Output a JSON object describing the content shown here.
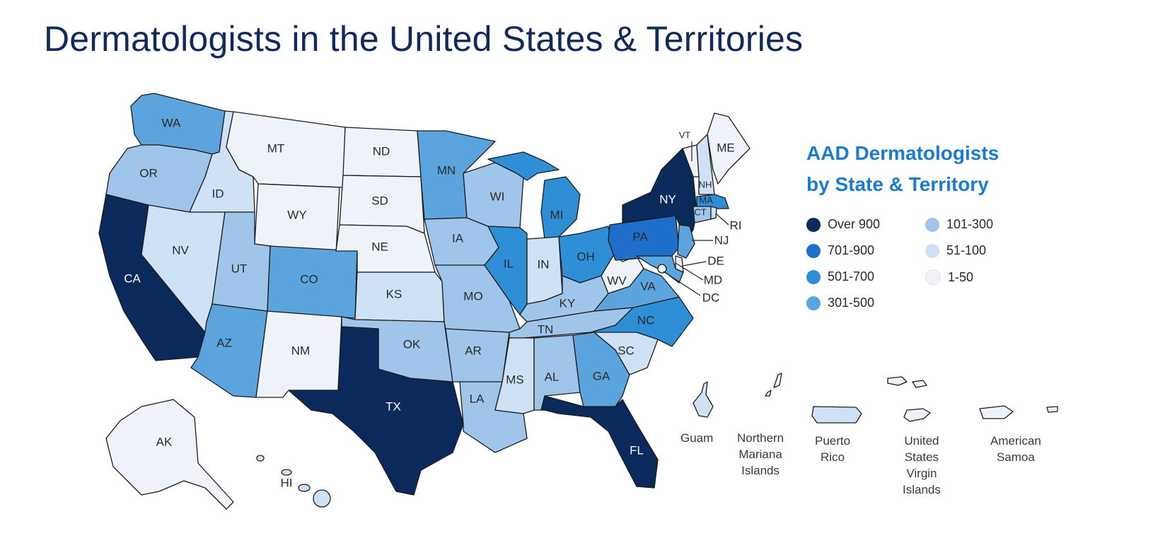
{
  "title": "Dermatologists in the United States & Territories",
  "legend": {
    "title_line1": "AAD Dermatologists",
    "title_line2": "by State & Territory",
    "items": [
      {
        "label": "Over 900",
        "color": "#0a2a5c"
      },
      {
        "label": "701-900",
        "color": "#1e6fcc"
      },
      {
        "label": "501-700",
        "color": "#2e8fd6"
      },
      {
        "label": "301-500",
        "color": "#5ca4de"
      },
      {
        "label": "101-300",
        "color": "#9fc6ea"
      },
      {
        "label": "51-100",
        "color": "#cfe1f5"
      },
      {
        "label": "1-50",
        "color": "#eef3f9"
      }
    ]
  },
  "states": {
    "WA": "WA",
    "OR": "OR",
    "CA": "CA",
    "ID": "ID",
    "NV": "NV",
    "MT": "MT",
    "WY": "WY",
    "UT": "UT",
    "AZ": "AZ",
    "CO": "CO",
    "NM": "NM",
    "ND": "ND",
    "SD": "SD",
    "NE": "NE",
    "KS": "KS",
    "OK": "OK",
    "TX": "TX",
    "MN": "MN",
    "IA": "IA",
    "MO": "MO",
    "AR": "AR",
    "LA": "LA",
    "WI": "WI",
    "IL": "IL",
    "MI": "MI",
    "IN": "IN",
    "OH": "OH",
    "KY": "KY",
    "TN": "TN",
    "MS": "MS",
    "AL": "AL",
    "GA": "GA",
    "FL": "FL",
    "SC": "SC",
    "NC": "NC",
    "VA": "VA",
    "WV": "WV",
    "PA": "PA",
    "NY": "NY",
    "VT": "VT",
    "NH": "NH",
    "ME": "ME",
    "MA": "MA",
    "CT": "CT",
    "RI": "RI",
    "NJ": "NJ",
    "DE": "DE",
    "MD": "MD",
    "DC": "DC",
    "AK": "AK",
    "HI": "HI"
  },
  "territories": {
    "guam": "Guam",
    "nmi_1": "Northern",
    "nmi_2": "Mariana",
    "nmi_3": "Islands",
    "pr_1": "Puerto",
    "pr_2": "Rico",
    "usvi_1": "United",
    "usvi_2": "States",
    "usvi_3": "Virgin",
    "usvi_4": "Islands",
    "as_1": "American",
    "as_2": "Samoa"
  }
}
